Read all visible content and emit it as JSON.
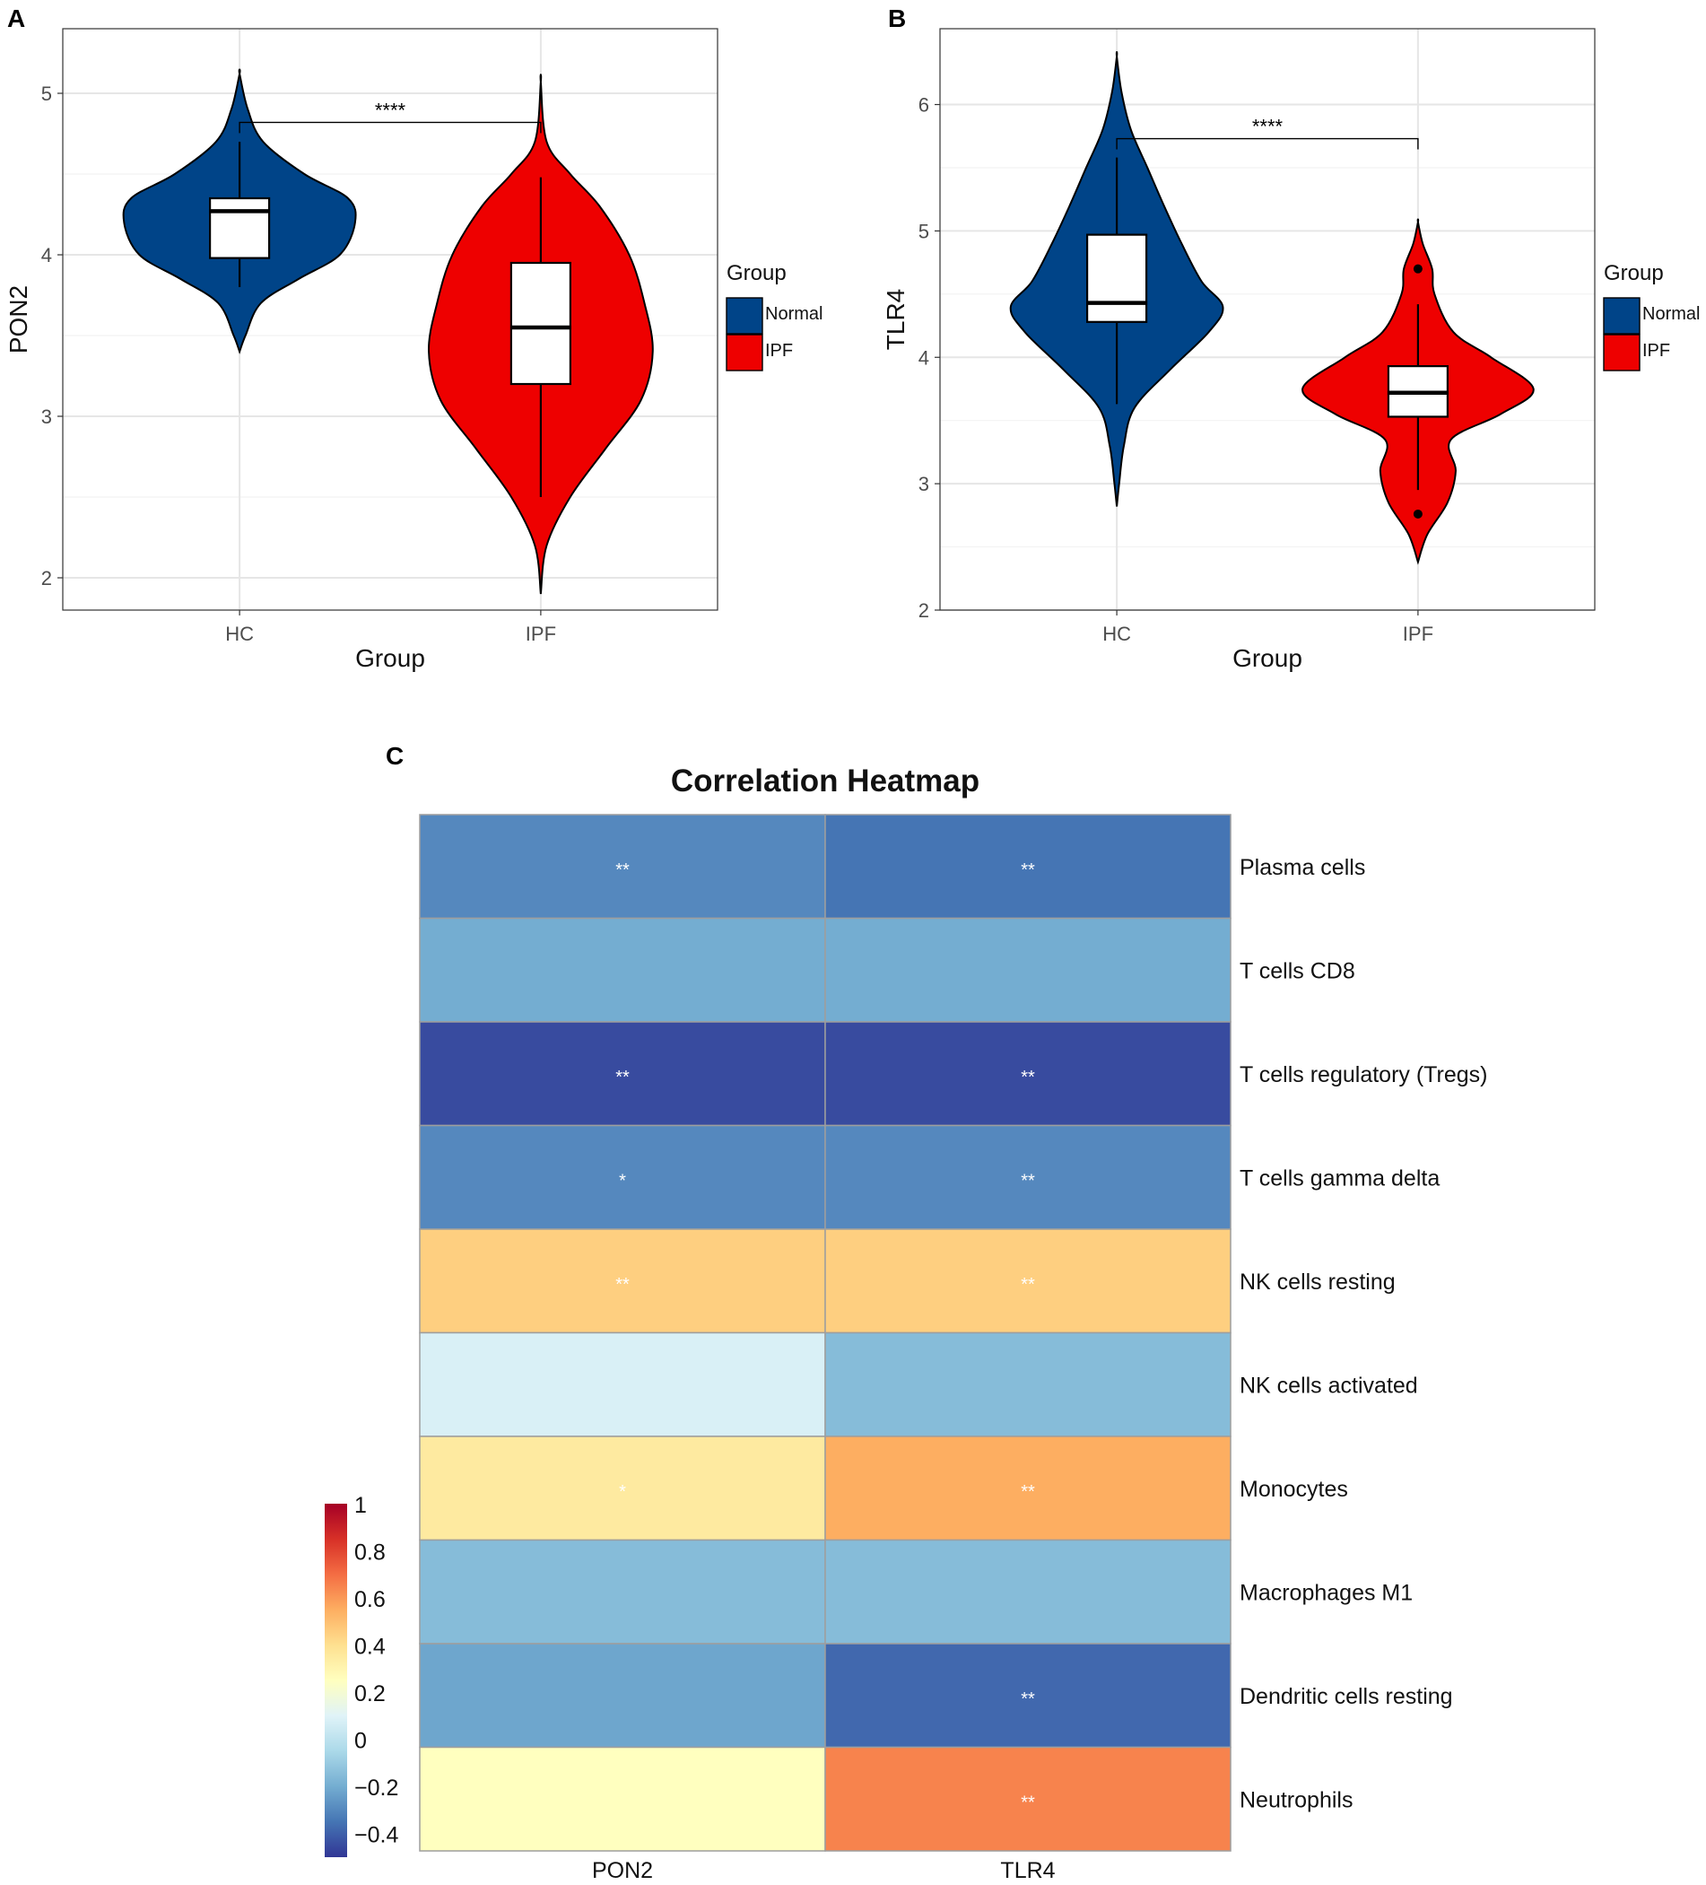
{
  "panel_labels": {
    "a": "A",
    "b": "B",
    "c": "C"
  },
  "colors": {
    "normal": "#004488",
    "ipf": "#EE0000",
    "grid": "#EBEBEB",
    "heat_border": "#9E9E9E"
  },
  "legend": {
    "title": "Group",
    "items": [
      {
        "label": "Normal",
        "color": "#004488"
      },
      {
        "label": "IPF",
        "color": "#EE0000"
      }
    ]
  },
  "chart_data": [
    {
      "id": "A",
      "type": "violin",
      "xlabel": "Group",
      "ylabel": "PON2",
      "categories": [
        "HC",
        "IPF"
      ],
      "yticks": [
        2,
        3,
        4,
        5
      ],
      "ylim": [
        1.8,
        5.4
      ],
      "significance": "****",
      "bracket_y": 4.82,
      "groups": [
        {
          "name": "HC",
          "legend": "Normal",
          "color": "#004488",
          "violin_min": 3.4,
          "violin_max": 5.12,
          "density": [
            [
              3.4,
              0.0
            ],
            [
              3.5,
              0.05
            ],
            [
              3.7,
              0.18
            ],
            [
              3.85,
              0.5
            ],
            [
              4.0,
              0.85
            ],
            [
              4.2,
              0.98
            ],
            [
              4.35,
              0.92
            ],
            [
              4.5,
              0.55
            ],
            [
              4.7,
              0.2
            ],
            [
              4.9,
              0.07
            ],
            [
              5.12,
              0.0
            ]
          ],
          "box": {
            "whisker_low": 3.8,
            "q1": 3.98,
            "median": 4.27,
            "q3": 4.35,
            "whisker_high": 4.7
          },
          "outliers": []
        },
        {
          "name": "IPF",
          "legend": "IPF",
          "color": "#EE0000",
          "violin_min": 1.9,
          "violin_max": 5.07,
          "density": [
            [
              1.9,
              0.0
            ],
            [
              2.2,
              0.05
            ],
            [
              2.5,
              0.25
            ],
            [
              2.8,
              0.55
            ],
            [
              3.1,
              0.85
            ],
            [
              3.4,
              0.95
            ],
            [
              3.7,
              0.88
            ],
            [
              4.0,
              0.75
            ],
            [
              4.3,
              0.5
            ],
            [
              4.5,
              0.25
            ],
            [
              4.7,
              0.05
            ],
            [
              5.07,
              0.0
            ]
          ],
          "box": {
            "whisker_low": 2.5,
            "q1": 3.2,
            "median": 3.55,
            "q3": 3.95,
            "whisker_high": 4.48
          },
          "outliers": []
        }
      ]
    },
    {
      "id": "B",
      "type": "violin",
      "xlabel": "Group",
      "ylabel": "TLR4",
      "categories": [
        "HC",
        "IPF"
      ],
      "yticks": [
        2,
        3,
        4,
        5,
        6
      ],
      "ylim": [
        2.0,
        6.6
      ],
      "significance": "****",
      "bracket_y": 5.73,
      "groups": [
        {
          "name": "HC",
          "legend": "Normal",
          "color": "#004488",
          "violin_min": 2.82,
          "violin_max": 6.38,
          "density": [
            [
              2.82,
              0.0
            ],
            [
              3.0,
              0.02
            ],
            [
              3.3,
              0.06
            ],
            [
              3.6,
              0.15
            ],
            [
              3.9,
              0.45
            ],
            [
              4.2,
              0.78
            ],
            [
              4.4,
              0.9
            ],
            [
              4.6,
              0.72
            ],
            [
              4.9,
              0.55
            ],
            [
              5.2,
              0.4
            ],
            [
              5.5,
              0.26
            ],
            [
              5.8,
              0.12
            ],
            [
              6.1,
              0.04
            ],
            [
              6.38,
              0.0
            ]
          ],
          "box": {
            "whisker_low": 3.63,
            "q1": 4.28,
            "median": 4.43,
            "q3": 4.97,
            "whisker_high": 5.58
          },
          "outliers": []
        },
        {
          "name": "IPF",
          "legend": "IPF",
          "color": "#EE0000",
          "violin_min": 2.38,
          "violin_max": 5.07,
          "density": [
            [
              2.38,
              0.0
            ],
            [
              2.6,
              0.08
            ],
            [
              2.85,
              0.25
            ],
            [
              3.1,
              0.32
            ],
            [
              3.35,
              0.28
            ],
            [
              3.55,
              0.7
            ],
            [
              3.75,
              0.98
            ],
            [
              4.0,
              0.62
            ],
            [
              4.2,
              0.3
            ],
            [
              4.5,
              0.14
            ],
            [
              4.7,
              0.12
            ],
            [
              4.9,
              0.04
            ],
            [
              5.07,
              0.0
            ]
          ],
          "box": {
            "whisker_low": 2.95,
            "q1": 3.53,
            "median": 3.72,
            "q3": 3.93,
            "whisker_high": 4.42
          },
          "outliers": [
            4.7,
            2.76
          ]
        }
      ]
    },
    {
      "id": "C",
      "type": "heatmap",
      "title": "Correlation Heatmap",
      "columns": [
        "PON2",
        "TLR4"
      ],
      "rows": [
        "Plasma cells",
        "T cells CD8",
        "T cells regulatory (Tregs)",
        "T cells gamma delta",
        "NK cells resting",
        "NK cells activated",
        "Monocytes",
        "Macrophages M1",
        "Dendritic cells resting",
        "Neutrophils"
      ],
      "values": [
        [
          -0.3,
          -0.35
        ],
        [
          -0.2,
          -0.2
        ],
        [
          -0.45,
          -0.45
        ],
        [
          -0.3,
          -0.3
        ],
        [
          0.45,
          0.45
        ],
        [
          0.08,
          -0.15
        ],
        [
          0.35,
          0.55
        ],
        [
          -0.15,
          -0.15
        ],
        [
          -0.22,
          -0.38
        ],
        [
          0.25,
          0.65
        ]
      ],
      "labels": [
        [
          "**",
          "**"
        ],
        [
          "",
          ""
        ],
        [
          "**",
          "**"
        ],
        [
          "*",
          "**"
        ],
        [
          "**",
          "**"
        ],
        [
          "",
          ""
        ],
        [
          "*",
          "**"
        ],
        [
          "",
          ""
        ],
        [
          "",
          "**"
        ],
        [
          "",
          "**"
        ]
      ],
      "legend_ticks": [
        "1",
        "0.8",
        "0.6",
        "0.4",
        "0.2",
        "0",
        "−0.2",
        "−0.4"
      ],
      "legend_range": [
        -0.5,
        1.0
      ],
      "legend_colors": [
        "#313695",
        "#4575B4",
        "#74ADD1",
        "#ABD9E9",
        "#E0F3F8",
        "#FFFFBF",
        "#FEE090",
        "#FDAE61",
        "#F46D43",
        "#D73027",
        "#A50026"
      ]
    }
  ]
}
